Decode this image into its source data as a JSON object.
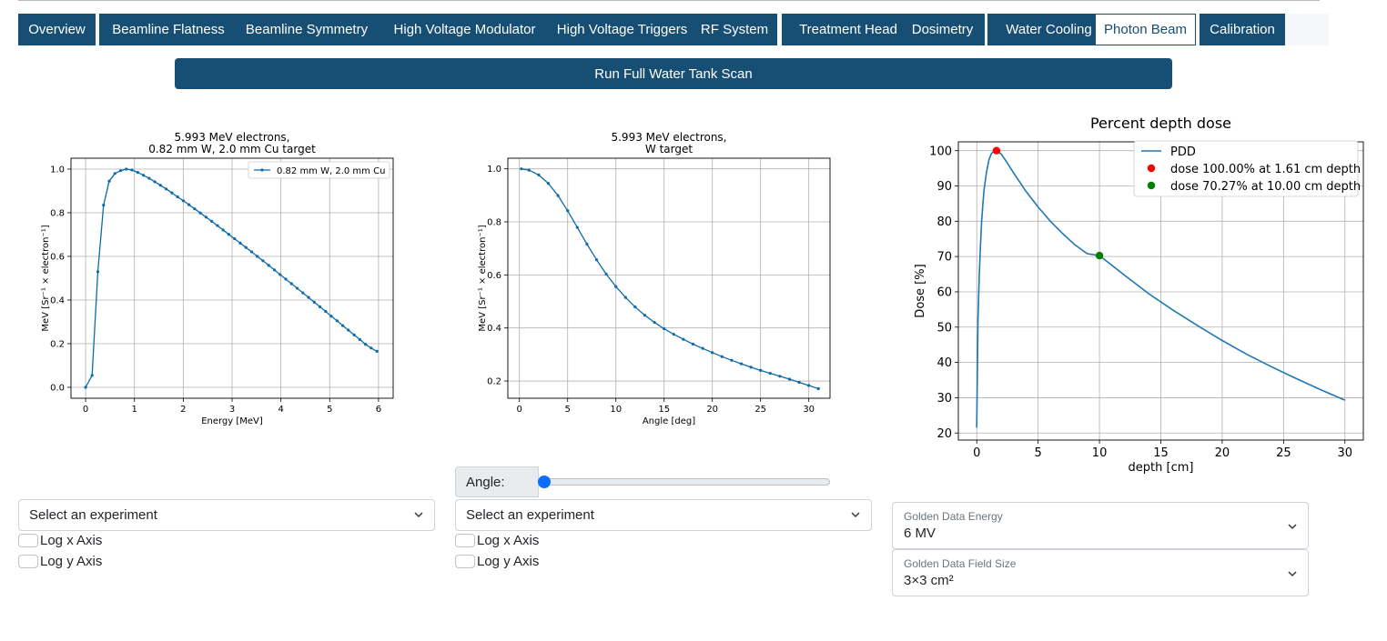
{
  "tabs": [
    "Overview",
    "Beamline Flatness",
    "Beamline Symmetry",
    "High Voltage Modulator",
    "High Voltage Triggers",
    "RF System",
    "Treatment Head",
    "Dosimetry",
    "Water Cooling",
    "Photon Beam",
    "Calibration"
  ],
  "active_tab": "Photon Beam",
  "run_button": "Run Full Water Tank Scan",
  "left_panel": {
    "experiment_select": "Select an experiment",
    "log_x": "Log x Axis",
    "log_y": "Log y Axis"
  },
  "middle_panel": {
    "angle_label": "Angle:",
    "angle_value_fraction": 0,
    "experiment_select": "Select an experiment",
    "log_x": "Log x Axis",
    "log_y": "Log y Axis"
  },
  "right_panel": {
    "energy": {
      "label": "Golden Data Energy",
      "value": "6 MV"
    },
    "field_size": {
      "label": "Golden Data Field Size",
      "value": "3×3 cm²"
    }
  },
  "colors": {
    "brand": "#174e73",
    "series_blue": "#1f77b4",
    "marker_red": "#ff0000",
    "marker_green": "#008000",
    "slider_thumb": "#0d6efd"
  },
  "chart_data": [
    {
      "type": "line",
      "title": "5.993 MeV electrons,\n0.82 mm W, 2.0 mm Cu target",
      "xlabel": "Energy [MeV]",
      "ylabel": "MeV [Sr⁻¹ × electron⁻¹]",
      "xlim": [
        -0.3,
        6.3
      ],
      "ylim": [
        -0.05,
        1.05
      ],
      "xticks": [
        0,
        1,
        2,
        3,
        4,
        5,
        6
      ],
      "yticks": [
        0.0,
        0.2,
        0.4,
        0.6,
        0.8,
        1.0
      ],
      "legend": "top-right",
      "grid": true,
      "markers": true,
      "series": [
        {
          "name": "0.82 mm W, 2.0 mm Cu",
          "x": [
            0,
            0.133,
            0.25,
            0.367,
            0.483,
            0.6,
            0.717,
            0.833,
            0.95,
            1.067,
            1.183,
            1.3,
            1.417,
            1.533,
            1.65,
            1.767,
            1.883,
            2.0,
            2.117,
            2.233,
            2.35,
            2.467,
            2.583,
            2.7,
            2.817,
            2.933,
            3.05,
            3.167,
            3.283,
            3.4,
            3.517,
            3.633,
            3.75,
            3.867,
            3.983,
            4.1,
            4.217,
            4.333,
            4.45,
            4.567,
            4.683,
            4.8,
            4.917,
            5.033,
            5.15,
            5.267,
            5.383,
            5.5,
            5.617,
            5.733,
            5.85,
            5.967
          ],
          "y": [
            0.0,
            0.055,
            0.53,
            0.835,
            0.945,
            0.98,
            0.993,
            1.0,
            0.996,
            0.985,
            0.972,
            0.958,
            0.942,
            0.926,
            0.909,
            0.891,
            0.873,
            0.855,
            0.837,
            0.818,
            0.799,
            0.78,
            0.761,
            0.741,
            0.721,
            0.701,
            0.681,
            0.661,
            0.641,
            0.621,
            0.6,
            0.58,
            0.559,
            0.538,
            0.517,
            0.496,
            0.475,
            0.454,
            0.433,
            0.412,
            0.39,
            0.369,
            0.348,
            0.326,
            0.305,
            0.283,
            0.262,
            0.24,
            0.219,
            0.197,
            0.18,
            0.165
          ]
        }
      ]
    },
    {
      "type": "line",
      "title": "5.993 MeV electrons,\nW target",
      "xlabel": "Angle [deg]",
      "ylabel": "MeV [Sr⁻¹ × electron⁻¹]",
      "xlim": [
        -1.2,
        32.2
      ],
      "ylim": [
        0.135,
        1.04
      ],
      "xticks": [
        0,
        5,
        10,
        15,
        20,
        25,
        30
      ],
      "yticks": [
        0.2,
        0.4,
        0.6,
        0.8,
        1.0
      ],
      "grid": true,
      "markers": true,
      "series": [
        {
          "name": "",
          "x": [
            0.2,
            1,
            2,
            3,
            4,
            5,
            6,
            7,
            8,
            9,
            10,
            11,
            12,
            13,
            14,
            15,
            16,
            17,
            18,
            19,
            20,
            21,
            22,
            23,
            24,
            25,
            26,
            27,
            28,
            29,
            30,
            31
          ],
          "y": [
            1.0,
            0.995,
            0.977,
            0.945,
            0.899,
            0.842,
            0.779,
            0.716,
            0.657,
            0.603,
            0.556,
            0.515,
            0.479,
            0.448,
            0.421,
            0.397,
            0.376,
            0.357,
            0.339,
            0.323,
            0.307,
            0.292,
            0.278,
            0.265,
            0.252,
            0.24,
            0.229,
            0.218,
            0.207,
            0.195,
            0.183,
            0.171
          ]
        }
      ]
    },
    {
      "type": "line",
      "title": "Percent depth dose",
      "xlabel": "depth [cm]",
      "ylabel": "Dose [%]",
      "xlim": [
        -1.5,
        31.5
      ],
      "ylim": [
        18,
        102.5
      ],
      "xticks": [
        0,
        5,
        10,
        15,
        20,
        25,
        30
      ],
      "yticks": [
        20,
        30,
        40,
        50,
        60,
        70,
        80,
        90,
        100
      ],
      "legend": "top-right",
      "grid": true,
      "series": [
        {
          "name": "PDD",
          "x": [
            0,
            0.1,
            0.2,
            0.3,
            0.4,
            0.5,
            0.6,
            0.8,
            1.0,
            1.2,
            1.4,
            1.61,
            2.0,
            2.5,
            3,
            4,
            5,
            6,
            7,
            8,
            9,
            10,
            12,
            14,
            16,
            18,
            20,
            22,
            24,
            26,
            28,
            30
          ],
          "y": [
            21.5,
            52,
            64,
            73,
            80,
            85,
            89,
            94,
            97.5,
            99.2,
            99.9,
            100,
            99,
            96.5,
            93.7,
            88.5,
            84,
            80,
            76.5,
            73.3,
            70.8,
            70.27,
            64.8,
            59.5,
            54.8,
            50.4,
            46.2,
            42.3,
            38.8,
            35.5,
            32.3,
            29.3
          ]
        },
        {
          "name": "dose 100.00% at 1.61 cm depth",
          "x": [
            1.61
          ],
          "y": [
            100.0
          ]
        },
        {
          "name": "dose 70.27% at 10.00 cm depth",
          "x": [
            10.0
          ],
          "y": [
            70.27
          ]
        }
      ]
    }
  ]
}
